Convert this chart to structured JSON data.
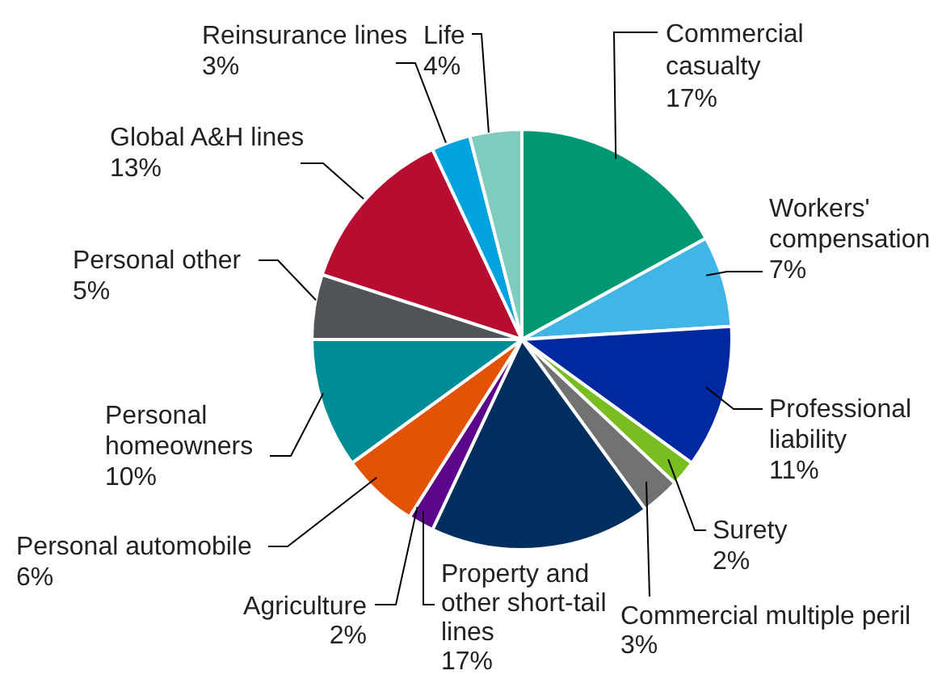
{
  "chart_data": {
    "type": "pie",
    "categories": [
      "Commercial casualty",
      "Workers' compensation",
      "Professional liability",
      "Surety",
      "Commercial multiple peril",
      "Property and other short-tail lines",
      "Agriculture",
      "Personal automobile",
      "Personal homeowners",
      "Personal other",
      "Global A&H lines",
      "Reinsurance lines",
      "Life"
    ],
    "values": [
      17,
      7,
      11,
      2,
      3,
      17,
      2,
      6,
      10,
      5,
      13,
      3,
      4
    ],
    "value_labels": [
      "17%",
      "7%",
      "11%",
      "2%",
      "3%",
      "17%",
      "2%",
      "6%",
      "10%",
      "5%",
      "13%",
      "3%",
      "4%"
    ],
    "colors": [
      "#009874",
      "#41b6e6",
      "#0028a0",
      "#78be20",
      "#707372",
      "#002f5f",
      "#5c068c",
      "#e35205",
      "#008c95",
      "#4f5458",
      "#b70d30",
      "#00a3e0",
      "#7fcbbd"
    ],
    "legend": false
  }
}
